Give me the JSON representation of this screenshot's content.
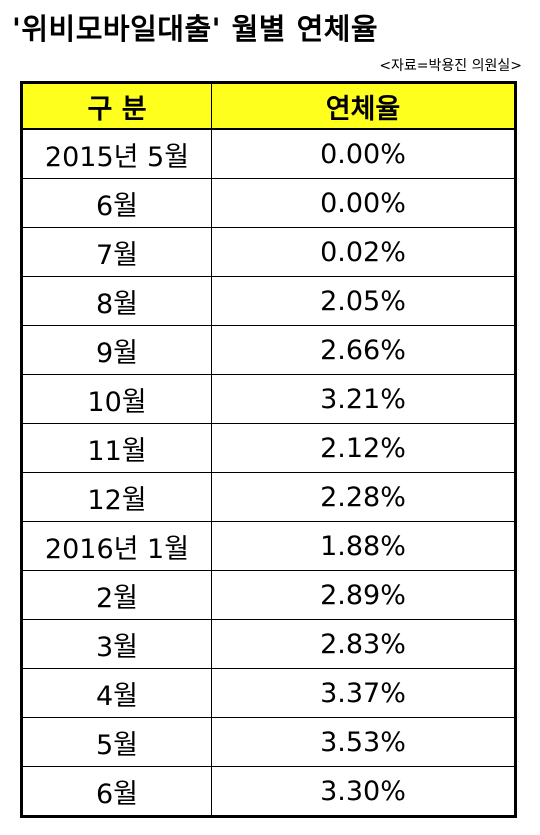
{
  "title": "'위비모바일대출' 월별 연체율",
  "source": "<자료=박용진 의원실>",
  "table": {
    "headers": [
      "구 분",
      "연체율"
    ],
    "rows": [
      [
        "2015년 5월",
        "0.00%"
      ],
      [
        "6월",
        "0.00%"
      ],
      [
        "7월",
        "0.02%"
      ],
      [
        "8월",
        "2.05%"
      ],
      [
        "9월",
        "2.66%"
      ],
      [
        "10월",
        "3.21%"
      ],
      [
        "11월",
        "2.12%"
      ],
      [
        "12월",
        "2.28%"
      ],
      [
        "2016년 1월",
        "1.88%"
      ],
      [
        "2월",
        "2.89%"
      ],
      [
        "3월",
        "2.83%"
      ],
      [
        "4월",
        "3.37%"
      ],
      [
        "5월",
        "3.53%"
      ],
      [
        "6월",
        "3.30%"
      ]
    ]
  }
}
